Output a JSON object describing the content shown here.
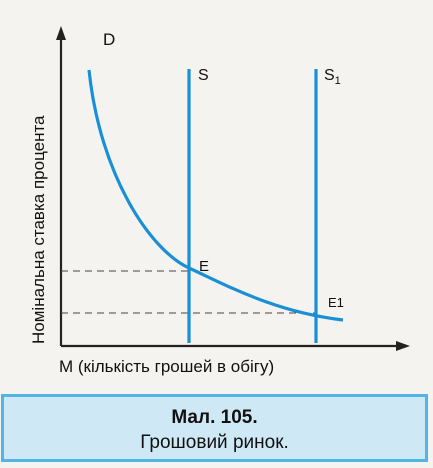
{
  "diagram": {
    "y_axis_label": "Номінальна ставка процента",
    "x_axis_label": "M (кількість грошей в обігу)",
    "demand_label": "D",
    "supply_label": "S",
    "supply_shift_label": "S",
    "supply_shift_subscript": "1",
    "equilibrium_label": "E",
    "equilibrium_shift_label": "E1",
    "colors": {
      "curves": "#1a8fd6",
      "axes": "#222222",
      "guides": "#444444"
    }
  },
  "caption": {
    "title": "Мал. 105.",
    "subtitle": "Грошовий ринок."
  }
}
